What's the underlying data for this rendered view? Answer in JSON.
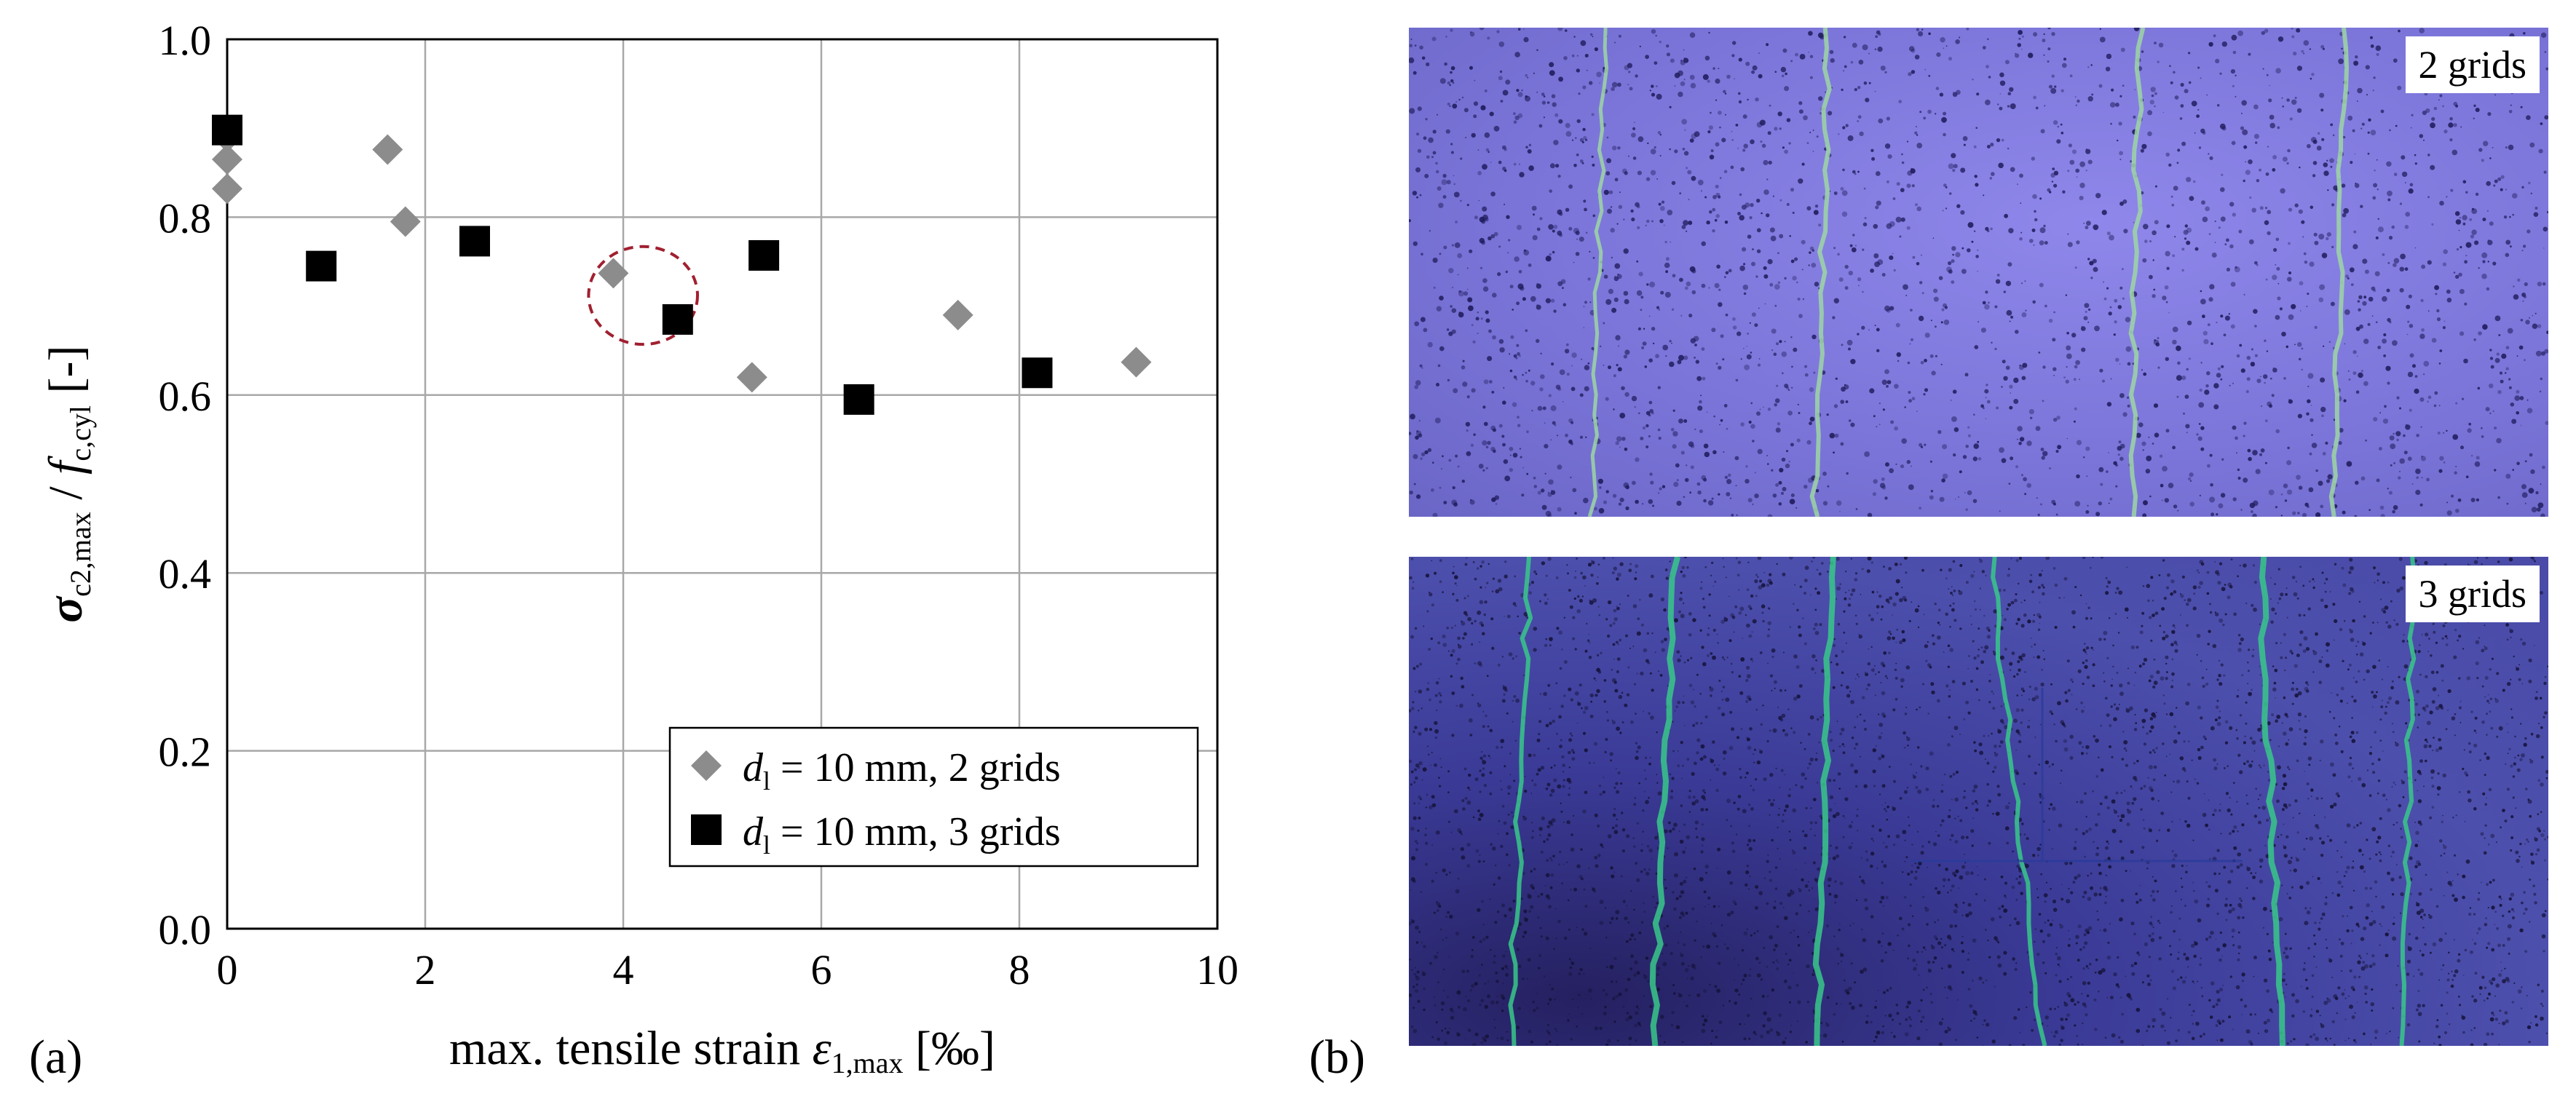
{
  "chart_data": {
    "type": "scatter",
    "xlabel_main": "max. tensile strain ",
    "xlabel_symbol": "ε",
    "xlabel_sub": "1,max",
    "xlabel_unit": " [‰]",
    "ylabel_sigma": "σ",
    "ylabel_sigma_sub": "c2,max",
    "ylabel_slash": " / ",
    "ylabel_f": "f",
    "ylabel_f_sub": "c,cyl",
    "ylabel_unit": " [-]",
    "xlim": [
      0,
      10
    ],
    "ylim": [
      0.0,
      1.0
    ],
    "x_ticks": [
      "0",
      "2",
      "4",
      "6",
      "8",
      "10"
    ],
    "y_ticks": [
      "0.0",
      "0.2",
      "0.4",
      "0.6",
      "0.8",
      "1.0"
    ],
    "grid": true,
    "legend_position": "bottom-right",
    "series": [
      {
        "name_symbol": "d",
        "name_sub": "l",
        "name_rest": " = 10 mm, 2 grids",
        "marker": "diamond",
        "color": "#8c8c8c",
        "points": [
          [
            0.0,
            0.89
          ],
          [
            0.0,
            0.865
          ],
          [
            0.0,
            0.832
          ],
          [
            1.62,
            0.876
          ],
          [
            1.8,
            0.795
          ],
          [
            3.9,
            0.737
          ],
          [
            5.3,
            0.62
          ],
          [
            7.38,
            0.69
          ],
          [
            9.18,
            0.637
          ]
        ]
      },
      {
        "name_symbol": "d",
        "name_sub": "l",
        "name_rest": " = 10 mm, 3 grids",
        "marker": "square",
        "color": "#000000",
        "points": [
          [
            0.0,
            0.898
          ],
          [
            0.95,
            0.745
          ],
          [
            2.5,
            0.773
          ],
          [
            4.55,
            0.685
          ],
          [
            5.42,
            0.757
          ],
          [
            6.38,
            0.595
          ],
          [
            8.18,
            0.625
          ]
        ]
      }
    ],
    "annotation": {
      "shape": "dashed-ellipse",
      "color": "#a02030",
      "center": [
        4.2,
        0.712
      ],
      "radius_x": 0.55,
      "radius_y": 0.055
    }
  },
  "panels": {
    "a_label": "(a)",
    "b_label": "(b)",
    "photo_top_label": "2 grids",
    "photo_bottom_label": "3 grids",
    "crack_color_top": "#9ed6a4",
    "crack_color_bottom": "#38c88a"
  }
}
